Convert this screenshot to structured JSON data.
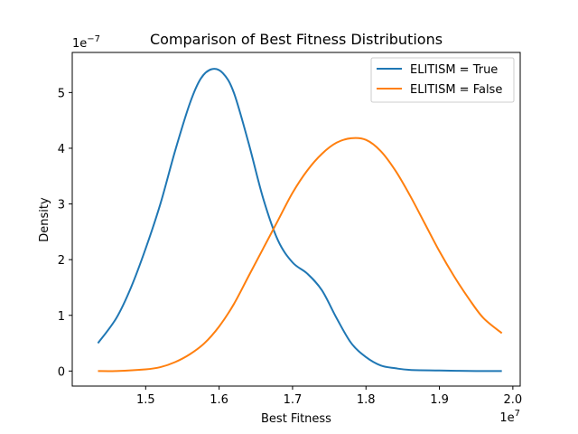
{
  "chart_data": {
    "type": "line",
    "title": "Comparison of Best Fitness Distributions",
    "xlabel": "Best Fitness",
    "ylabel": "Density",
    "x_multiplier": "1e7",
    "y_multiplier": "1e−7",
    "x_scale": 10000000,
    "y_scale": 1e-07,
    "xlim": [
      1.4,
      2.01
    ],
    "ylim": [
      -0.27,
      5.72
    ],
    "x_ticks": [
      1.5,
      1.6,
      1.7,
      1.8,
      1.9,
      2.0
    ],
    "x_tick_labels": [
      "1.5",
      "1.6",
      "1.7",
      "1.8",
      "1.9",
      "2.0"
    ],
    "y_ticks": [
      0,
      1,
      2,
      3,
      4,
      5
    ],
    "y_tick_labels": [
      "0",
      "1",
      "2",
      "3",
      "4",
      "5"
    ],
    "grid": false,
    "legend_position": "top-right",
    "series": [
      {
        "name": "ELITISM = True",
        "color": "#1f77b4",
        "x": [
          1.435,
          1.46,
          1.48,
          1.5,
          1.52,
          1.54,
          1.56,
          1.575,
          1.59,
          1.605,
          1.62,
          1.64,
          1.66,
          1.68,
          1.7,
          1.72,
          1.74,
          1.76,
          1.78,
          1.8,
          1.82,
          1.84,
          1.86,
          1.9,
          1.95,
          1.985
        ],
        "y": [
          0.5,
          0.95,
          1.5,
          2.2,
          3.0,
          3.95,
          4.8,
          5.25,
          5.42,
          5.35,
          5.0,
          4.1,
          3.1,
          2.35,
          1.95,
          1.75,
          1.45,
          0.95,
          0.5,
          0.25,
          0.1,
          0.05,
          0.02,
          0.01,
          0.0,
          0.0
        ]
      },
      {
        "name": "ELITISM = False",
        "color": "#ff7f0e",
        "x": [
          1.435,
          1.46,
          1.5,
          1.52,
          1.54,
          1.56,
          1.58,
          1.6,
          1.62,
          1.64,
          1.66,
          1.68,
          1.7,
          1.72,
          1.74,
          1.76,
          1.78,
          1.8,
          1.82,
          1.84,
          1.86,
          1.88,
          1.9,
          1.92,
          1.94,
          1.96,
          1.985
        ],
        "y": [
          0.0,
          0.0,
          0.03,
          0.07,
          0.16,
          0.3,
          0.5,
          0.8,
          1.2,
          1.7,
          2.2,
          2.7,
          3.2,
          3.6,
          3.9,
          4.1,
          4.18,
          4.15,
          3.95,
          3.6,
          3.15,
          2.65,
          2.15,
          1.7,
          1.3,
          0.95,
          0.68
        ]
      }
    ]
  }
}
